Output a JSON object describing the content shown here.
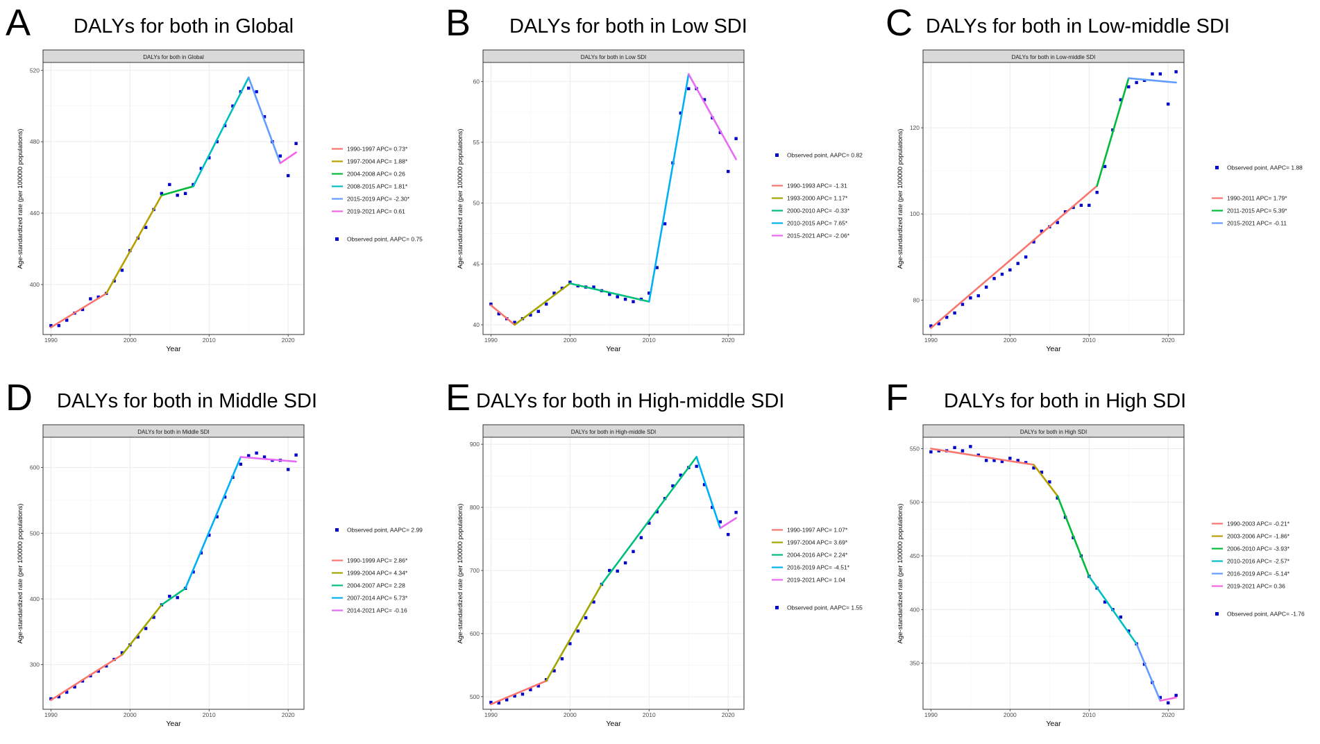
{
  "chart_data": [
    {
      "type": "line",
      "letter": "A",
      "title": "DALYs for both in Global",
      "strip": "DALYs for both in Global",
      "xlabel": "Year",
      "ylabel": "Age-standardized rate (per 100000 populations)",
      "xlim": [
        1989,
        2022
      ],
      "ylim": [
        372,
        524
      ],
      "xticks": [
        1990,
        2000,
        2010,
        2020
      ],
      "yticks": [
        400,
        440,
        480,
        520
      ],
      "legend_order": [
        "segments",
        "points"
      ],
      "segments": [
        {
          "label": "1990-1997 APC= 0.73*",
          "color": "#f8766d",
          "x": [
            1990,
            1997
          ],
          "y": [
            376,
            395
          ]
        },
        {
          "label": "1997-2004 APC= 1.88*",
          "color": "#b79f00",
          "x": [
            1997,
            2004
          ],
          "y": [
            395,
            450
          ]
        },
        {
          "label": "2004-2008 APC= 0.26",
          "color": "#00ba38",
          "x": [
            2004,
            2008
          ],
          "y": [
            450,
            455
          ]
        },
        {
          "label": "2008-2015 APC= 1.81*",
          "color": "#00bfc4",
          "x": [
            2008,
            2015
          ],
          "y": [
            455,
            516
          ]
        },
        {
          "label": "2015-2019 APC= -2.30*",
          "color": "#619cff",
          "x": [
            2015,
            2019
          ],
          "y": [
            516,
            468
          ]
        },
        {
          "label": "2019-2021 APC= 0.61",
          "color": "#f564e3",
          "x": [
            2019,
            2021
          ],
          "y": [
            468,
            474
          ]
        }
      ],
      "points_label": "Observed point, AAPC= 0.75",
      "points": {
        "x": [
          1990,
          1991,
          1992,
          1993,
          1994,
          1995,
          1996,
          1997,
          1998,
          1999,
          2000,
          2001,
          2002,
          2003,
          2004,
          2005,
          2006,
          2007,
          2008,
          2009,
          2010,
          2011,
          2012,
          2013,
          2014,
          2015,
          2016,
          2017,
          2018,
          2019,
          2020,
          2021
        ],
        "y": [
          377,
          377,
          380,
          384,
          386,
          392,
          393,
          395,
          402,
          408,
          419,
          426,
          432,
          442,
          451,
          456,
          450,
          451,
          456,
          465,
          471,
          480,
          489,
          500,
          508,
          510,
          508,
          494,
          480,
          472,
          461,
          479
        ]
      }
    },
    {
      "type": "line",
      "letter": "B",
      "title": "DALYs for both in Low SDI",
      "strip": "DALYs for both in Low SDI",
      "xlabel": "Year",
      "ylabel": "Age-standardized rate (per 100000 populations)",
      "xlim": [
        1989,
        2022
      ],
      "ylim": [
        39.2,
        61.5
      ],
      "xticks": [
        1990,
        2000,
        2010,
        2020
      ],
      "yticks": [
        40,
        45,
        50,
        55,
        60
      ],
      "legend_order": [
        "points",
        "segments"
      ],
      "segments": [
        {
          "label": "1990-1993 APC= -1.31",
          "color": "#f8766d",
          "x": [
            1990,
            1993
          ],
          "y": [
            41.6,
            40.0
          ]
        },
        {
          "label": "1993-2000 APC= 1.17*",
          "color": "#a3a500",
          "x": [
            1993,
            2000
          ],
          "y": [
            40.0,
            43.4
          ]
        },
        {
          "label": "2000-2010 APC= -0.33*",
          "color": "#00bf7d",
          "x": [
            2000,
            2010
          ],
          "y": [
            43.4,
            41.9
          ]
        },
        {
          "label": "2010-2015 APC= 7.65*",
          "color": "#00b0f6",
          "x": [
            2010,
            2015
          ],
          "y": [
            41.9,
            60.6
          ]
        },
        {
          "label": "2015-2021 APC= -2.06*",
          "color": "#e76bf3",
          "x": [
            2015,
            2021
          ],
          "y": [
            60.6,
            53.6
          ]
        }
      ],
      "points_label": "Observed point, AAPC= 0.82",
      "points": {
        "x": [
          1990,
          1991,
          1992,
          1993,
          1994,
          1995,
          1996,
          1997,
          1998,
          1999,
          2000,
          2001,
          2002,
          2003,
          2004,
          2005,
          2006,
          2007,
          2008,
          2009,
          2010,
          2011,
          2012,
          2013,
          2014,
          2015,
          2016,
          2017,
          2018,
          2019,
          2020,
          2021
        ],
        "y": [
          41.7,
          40.9,
          40.5,
          40.2,
          40.5,
          40.8,
          41.1,
          41.7,
          42.6,
          43.0,
          43.5,
          43.2,
          43.1,
          43.1,
          42.8,
          42.5,
          42.3,
          42.1,
          41.9,
          42.1,
          42.6,
          44.7,
          48.3,
          53.3,
          57.4,
          59.4,
          59.4,
          58.5,
          57.0,
          55.8,
          52.6,
          55.3
        ]
      }
    },
    {
      "type": "line",
      "letter": "C",
      "title": "DALYs for both in Low-middle SDI",
      "strip": "DALYs for both in Low-middle SDI",
      "xlabel": "Year",
      "ylabel": "Age-standardized rate (per 100000 populations)",
      "xlim": [
        1989,
        2022
      ],
      "ylim": [
        72,
        135
      ],
      "xticks": [
        1990,
        2000,
        2010,
        2020
      ],
      "yticks": [
        80,
        100,
        120
      ],
      "legend_order": [
        "points",
        "segments"
      ],
      "segments": [
        {
          "label": "1990-2011 APC= 1.79*",
          "color": "#f8766d",
          "x": [
            1990,
            2011
          ],
          "y": [
            73.5,
            106.5
          ]
        },
        {
          "label": "2011-2015 APC= 5.39*",
          "color": "#00ba38",
          "x": [
            2011,
            2015
          ],
          "y": [
            106.5,
            131.5
          ]
        },
        {
          "label": "2015-2021 APC= -0.11",
          "color": "#619cff",
          "x": [
            2015,
            2021
          ],
          "y": [
            131.5,
            130.5
          ]
        }
      ],
      "points_label": "Observed point, AAPC= 1.88",
      "points": {
        "x": [
          1990,
          1991,
          1992,
          1993,
          1994,
          1995,
          1996,
          1997,
          1998,
          1999,
          2000,
          2001,
          2002,
          2003,
          2004,
          2005,
          2006,
          2007,
          2008,
          2009,
          2010,
          2011,
          2012,
          2013,
          2014,
          2015,
          2016,
          2017,
          2018,
          2019,
          2020,
          2021
        ],
        "y": [
          74.0,
          74.5,
          76.0,
          77.0,
          79.0,
          80.5,
          81.0,
          83.0,
          85.0,
          86.0,
          87.0,
          88.5,
          90.0,
          93.5,
          96.0,
          97.0,
          98.0,
          100.5,
          101.5,
          102.0,
          102.0,
          105.0,
          111.0,
          119.5,
          126.5,
          129.5,
          130.5,
          131.0,
          132.5,
          132.5,
          125.5,
          133.0
        ]
      }
    },
    {
      "type": "line",
      "letter": "D",
      "title": "DALYs for both in Middle SDI",
      "strip": "DALYs for both in Middle SDI",
      "xlabel": "Year",
      "ylabel": "Age-standardized rate (per 100000 populations)",
      "xlim": [
        1989,
        2022
      ],
      "ylim": [
        232,
        645
      ],
      "xticks": [
        1990,
        2000,
        2010,
        2020
      ],
      "yticks": [
        300,
        400,
        500,
        600
      ],
      "legend_order": [
        "points",
        "segments"
      ],
      "segments": [
        {
          "label": "1990-1999 APC= 2.86*",
          "color": "#f8766d",
          "x": [
            1990,
            1999
          ],
          "y": [
            246,
            315
          ]
        },
        {
          "label": "1999-2004 APC= 4.34*",
          "color": "#a3a500",
          "x": [
            1999,
            2004
          ],
          "y": [
            315,
            391
          ]
        },
        {
          "label": "2004-2007 APC= 2.28",
          "color": "#00bf7d",
          "x": [
            2004,
            2007
          ],
          "y": [
            391,
            416
          ]
        },
        {
          "label": "2007-2014 APC= 5.73*",
          "color": "#00b0f6",
          "x": [
            2007,
            2014
          ],
          "y": [
            416,
            616
          ]
        },
        {
          "label": "2014-2021 APC= -0.16",
          "color": "#e76bf3",
          "x": [
            2014,
            2021
          ],
          "y": [
            616,
            609
          ]
        }
      ],
      "points_label": "Observed point, AAPC= 2.99",
      "points": {
        "x": [
          1990,
          1991,
          1992,
          1993,
          1994,
          1995,
          1996,
          1997,
          1998,
          1999,
          2000,
          2001,
          2002,
          2003,
          2004,
          2005,
          2006,
          2007,
          2008,
          2009,
          2010,
          2011,
          2012,
          2013,
          2014,
          2015,
          2016,
          2017,
          2018,
          2019,
          2020,
          2021
        ],
        "y": [
          248,
          251,
          258,
          266,
          275,
          283,
          290,
          298,
          308,
          318,
          330,
          342,
          355,
          372,
          391,
          404,
          402,
          416,
          441,
          470,
          497,
          525,
          555,
          585,
          605,
          618,
          622,
          616,
          611,
          611,
          597,
          619
        ]
      }
    },
    {
      "type": "line",
      "letter": "E",
      "title": "DALYs for both in High-middle SDI",
      "strip": "DALYs for both in High-middle SDI",
      "xlabel": "Year",
      "ylabel": "Age-standardized rate (per 100000 populations)",
      "xlim": [
        1989,
        2022
      ],
      "ylim": [
        480,
        910
      ],
      "xticks": [
        1990,
        2000,
        2010,
        2020
      ],
      "yticks": [
        500,
        600,
        700,
        800,
        900
      ],
      "legend_order": [
        "segments",
        "points"
      ],
      "segments": [
        {
          "label": "1990-1997 APC= 1.07*",
          "color": "#f8766d",
          "x": [
            1990,
            1997
          ],
          "y": [
            488,
            525
          ]
        },
        {
          "label": "1997-2004 APC= 3.69*",
          "color": "#a3a500",
          "x": [
            1997,
            2004
          ],
          "y": [
            525,
            678
          ]
        },
        {
          "label": "2004-2016 APC= 2.24*",
          "color": "#00bf7d",
          "x": [
            2004,
            2016
          ],
          "y": [
            678,
            880
          ]
        },
        {
          "label": "2016-2019 APC= -4.51*",
          "color": "#00b0f6",
          "x": [
            2016,
            2019
          ],
          "y": [
            880,
            767
          ]
        },
        {
          "label": "2019-2021 APC= 1.04",
          "color": "#e76bf3",
          "x": [
            2019,
            2021
          ],
          "y": [
            767,
            783
          ]
        }
      ],
      "points_label": "Observed point, AAPC= 1.55",
      "points": {
        "x": [
          1990,
          1991,
          1992,
          1993,
          1994,
          1995,
          1996,
          1997,
          1998,
          1999,
          2000,
          2001,
          2002,
          2003,
          2004,
          2005,
          2006,
          2007,
          2008,
          2009,
          2010,
          2011,
          2012,
          2013,
          2014,
          2015,
          2016,
          2017,
          2018,
          2019,
          2020,
          2021
        ],
        "y": [
          491,
          490,
          495,
          501,
          504,
          511,
          517,
          527,
          541,
          560,
          584,
          604,
          625,
          650,
          678,
          700,
          699,
          712,
          730,
          752,
          775,
          793,
          814,
          834,
          851,
          863,
          865,
          836,
          800,
          777,
          757,
          792
        ]
      }
    },
    {
      "type": "line",
      "letter": "F",
      "title": "DALYs for both in High SDI",
      "strip": "DALYs for both in High SDI",
      "xlabel": "Year",
      "ylabel": "Age-standardized rate (per 100000 populations)",
      "xlim": [
        1989,
        2022
      ],
      "ylim": [
        307,
        560
      ],
      "xticks": [
        1990,
        2000,
        2010,
        2020
      ],
      "yticks": [
        350,
        400,
        450,
        500,
        550
      ],
      "legend_order": [
        "segments",
        "points"
      ],
      "segments": [
        {
          "label": "1990-2003 APC= -0.21*",
          "color": "#f8766d",
          "x": [
            1990,
            2003
          ],
          "y": [
            550,
            535
          ]
        },
        {
          "label": "2003-2006 APC= -1.86*",
          "color": "#b79f00",
          "x": [
            2003,
            2006
          ],
          "y": [
            535,
            506
          ]
        },
        {
          "label": "2006-2010 APC= -3.93*",
          "color": "#00ba38",
          "x": [
            2006,
            2010
          ],
          "y": [
            506,
            431
          ]
        },
        {
          "label": "2010-2016 APC= -2.57*",
          "color": "#00bfc4",
          "x": [
            2010,
            2016
          ],
          "y": [
            431,
            368
          ]
        },
        {
          "label": "2016-2019 APC= -5.14*",
          "color": "#619cff",
          "x": [
            2016,
            2019
          ],
          "y": [
            368,
            315
          ]
        },
        {
          "label": "2019-2021 APC= 0.36",
          "color": "#f564e3",
          "x": [
            2019,
            2021
          ],
          "y": [
            315,
            318
          ]
        }
      ],
      "points_label": "Observed point, AAPC= -1.76",
      "points": {
        "x": [
          1990,
          1991,
          1992,
          1993,
          1994,
          1995,
          1996,
          1997,
          1998,
          1999,
          2000,
          2001,
          2002,
          2003,
          2004,
          2005,
          2006,
          2007,
          2008,
          2009,
          2010,
          2011,
          2012,
          2013,
          2014,
          2015,
          2016,
          2017,
          2018,
          2019,
          2020,
          2021
        ],
        "y": [
          547,
          548,
          548,
          551,
          548,
          552,
          544,
          539,
          539,
          538,
          541,
          539,
          537,
          532,
          528,
          519,
          504,
          486,
          467,
          450,
          431,
          420,
          407,
          400,
          393,
          380,
          368,
          349,
          332,
          318,
          313,
          320
        ]
      }
    }
  ],
  "colors": {
    "points": "#0000cc",
    "strip_fill": "#d9d9d9",
    "grid": "#ebebeb"
  }
}
